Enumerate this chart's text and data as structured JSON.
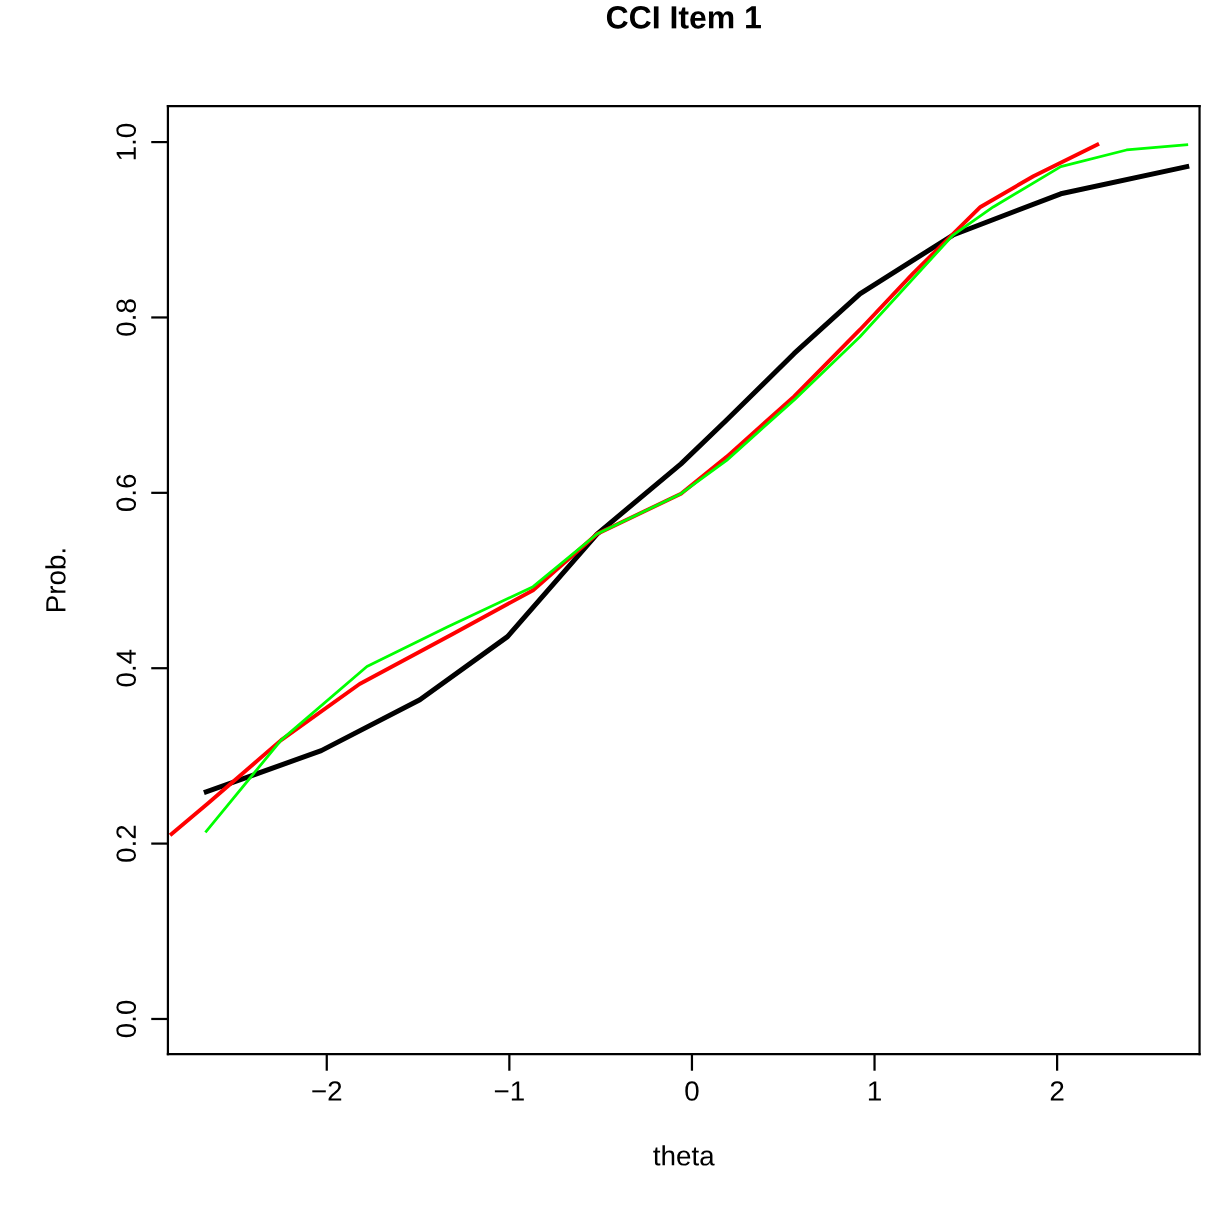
{
  "chart_data": {
    "type": "line",
    "title": "CCI Item 1",
    "xlabel": "theta",
    "ylabel": "Prob.",
    "xlim": [
      -2.87,
      2.78
    ],
    "xticks": [
      {
        "value": -2,
        "label": "−2"
      },
      {
        "value": -1,
        "label": "−1"
      },
      0,
      1,
      2
    ],
    "ylim": [
      -0.04,
      1.041
    ],
    "yticks": [
      {
        "value": 0,
        "label": "0.0"
      },
      {
        "value": 0.2,
        "label": "0.2"
      },
      {
        "value": 0.4,
        "label": "0.4"
      },
      {
        "value": 0.6,
        "label": "0.6"
      },
      {
        "value": 0.8,
        "label": "0.8"
      },
      {
        "value": 1,
        "label": "1.0"
      }
    ],
    "grid": false,
    "marker": "none",
    "line_style": "solid",
    "series": [
      {
        "color": "#000000",
        "x": [
          -2.66,
          -2.03,
          -1.49,
          -1.01,
          -0.52,
          -0.06,
          0.19,
          0.56,
          0.92,
          1.43,
          2.02,
          2.71
        ],
        "values": [
          0.259,
          0.306,
          0.364,
          0.436,
          0.553,
          0.633,
          0.683,
          0.759,
          0.827,
          0.894,
          0.941,
          0.972
        ]
      },
      {
        "color": "#ff0000",
        "x": [
          -2.85,
          -2.65,
          -2.25,
          -1.82,
          -1.31,
          -0.87,
          -0.52,
          -0.06,
          0.19,
          0.56,
          0.92,
          1.21,
          1.58,
          1.87,
          2.22
        ],
        "values": [
          0.211,
          0.246,
          0.318,
          0.382,
          0.439,
          0.489,
          0.553,
          0.599,
          0.641,
          0.71,
          0.786,
          0.85,
          0.926,
          0.961,
          0.997
        ]
      },
      {
        "color": "#00ff00",
        "x": [
          -2.66,
          -2.25,
          -1.78,
          -1.34,
          -0.87,
          -0.52,
          -0.06,
          0.19,
          0.56,
          0.92,
          1.43,
          1.65,
          2.02,
          2.38,
          2.71
        ],
        "values": [
          0.214,
          0.318,
          0.402,
          0.447,
          0.493,
          0.553,
          0.599,
          0.637,
          0.706,
          0.778,
          0.894,
          0.926,
          0.972,
          0.991,
          0.997
        ]
      }
    ]
  }
}
